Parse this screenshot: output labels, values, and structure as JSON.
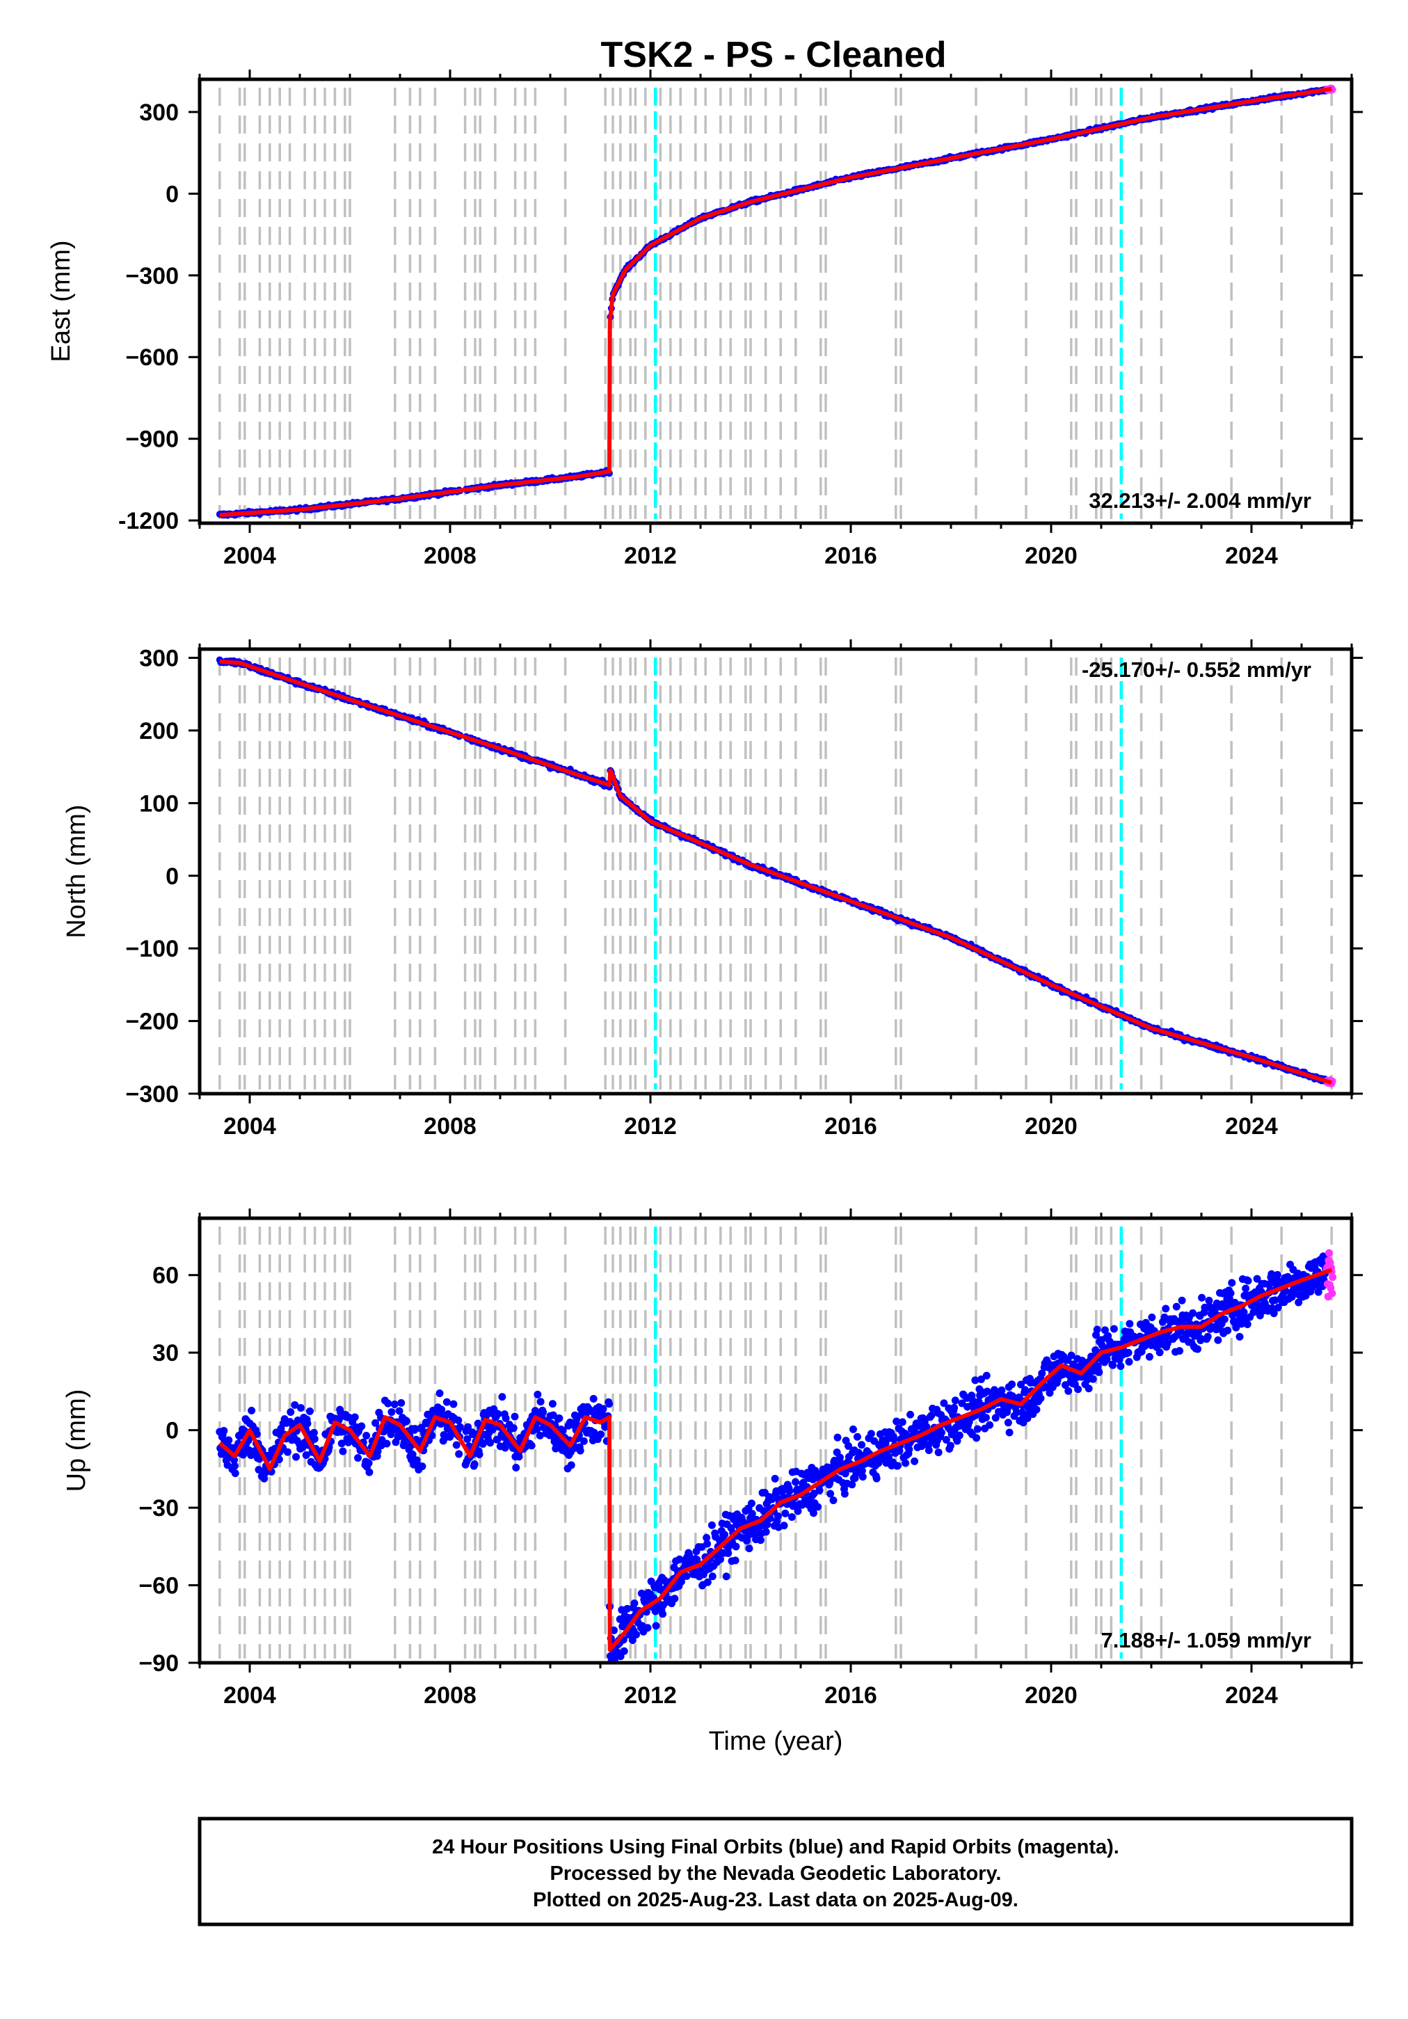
{
  "figure": {
    "title": "TSK2  - PS - Cleaned",
    "colors": {
      "final_orbits": "#0000ff",
      "rapid_orbits": "#ff33ff",
      "model": "#ff0000",
      "event_lines": "#c0c0c0",
      "highlight_lines": "#00ffff"
    },
    "footer": {
      "line1": "24 Hour Positions Using Final Orbits (blue) and Rapid Orbits (magenta).",
      "line2": "Processed by the Nevada Geodetic Laboratory.",
      "line3": "Plotted on 2025-Aug-23. Last data on 2025-Aug-09."
    }
  },
  "chart_data": [
    {
      "type": "scatter",
      "component": "east",
      "ylabel": "East (mm)",
      "xlabel": "",
      "rate_text": "32.213+/- 2.004 mm/yr",
      "rate_position": "bottom-right",
      "xlim": [
        2003.0,
        2026.0
      ],
      "ylim": [
        -1210,
        420
      ],
      "xticks": [
        2004,
        2008,
        2012,
        2016,
        2020,
        2024
      ],
      "yticks": [
        -1200,
        -900,
        -600,
        -300,
        0,
        300
      ],
      "ytick_labels": [
        "-1200",
        "−900",
        "−600",
        "−300",
        "0",
        "300"
      ],
      "series": [
        {
          "role": "model",
          "x": [
            2003.4,
            2005.0,
            2007.0,
            2009.0,
            2010.5,
            2011.18,
            2011.19,
            2011.25,
            2011.5,
            2012.0,
            2013.0,
            2014.0,
            2016.0,
            2018.0,
            2020.0,
            2022.0,
            2024.0,
            2025.6
          ],
          "y": [
            -1180,
            -1160,
            -1120,
            -1070,
            -1040,
            -1020,
            -470,
            -370,
            -280,
            -190,
            -90,
            -30,
            60,
            130,
            200,
            280,
            340,
            385
          ]
        }
      ]
    },
    {
      "type": "scatter",
      "component": "north",
      "ylabel": "North (mm)",
      "xlabel": "",
      "rate_text": "-25.170+/- 0.552 mm/yr",
      "rate_position": "top-right",
      "xlim": [
        2003.0,
        2026.0
      ],
      "ylim": [
        -300,
        312
      ],
      "xticks": [
        2004,
        2008,
        2012,
        2016,
        2020,
        2024
      ],
      "yticks": [
        -300,
        -200,
        -100,
        0,
        100,
        200,
        300
      ],
      "ytick_labels": [
        "−300",
        "−200",
        "−100",
        "0",
        "100",
        "200",
        "300"
      ],
      "series": [
        {
          "role": "model",
          "x": [
            2003.4,
            2003.8,
            2005.0,
            2007.0,
            2009.0,
            2010.5,
            2011.18,
            2011.2,
            2011.4,
            2012.0,
            2013.0,
            2014.0,
            2016.0,
            2018.0,
            2020.0,
            2022.0,
            2024.0,
            2025.6
          ],
          "y": [
            295,
            293,
            265,
            220,
            175,
            140,
            125,
            145,
            110,
            75,
            45,
            15,
            -35,
            -85,
            -150,
            -210,
            -250,
            -285
          ]
        }
      ]
    },
    {
      "type": "scatter",
      "component": "up",
      "ylabel": "Up (mm)",
      "xlabel": "Time (year)",
      "rate_text": "7.188+/- 1.059 mm/yr",
      "rate_position": "bottom-right",
      "xlim": [
        2003.0,
        2026.0
      ],
      "ylim": [
        -90,
        82
      ],
      "xticks": [
        2004,
        2008,
        2012,
        2016,
        2020,
        2024
      ],
      "yticks": [
        -90,
        -60,
        -30,
        0,
        30,
        60
      ],
      "ytick_labels": [
        "−90",
        "−60",
        "−30",
        "0",
        "30",
        "60"
      ],
      "series": [
        {
          "role": "model",
          "x": [
            2003.4,
            2003.7,
            2004.0,
            2004.4,
            2004.7,
            2005.0,
            2005.4,
            2005.7,
            2006.0,
            2006.4,
            2006.7,
            2007.0,
            2007.4,
            2007.7,
            2008.0,
            2008.4,
            2008.7,
            2009.0,
            2009.4,
            2009.7,
            2010.0,
            2010.4,
            2010.7,
            2011.0,
            2011.18,
            2011.19,
            2011.5,
            2011.8,
            2012.2,
            2012.6,
            2013.0,
            2013.4,
            2013.8,
            2014.2,
            2014.6,
            2015.0,
            2015.4,
            2015.8,
            2016.2,
            2016.6,
            2017.0,
            2017.4,
            2017.8,
            2018.2,
            2018.6,
            2019.0,
            2019.4,
            2019.8,
            2020.2,
            2020.6,
            2021.0,
            2021.4,
            2021.8,
            2022.2,
            2022.6,
            2023.0,
            2023.4,
            2023.8,
            2024.2,
            2024.6,
            2025.0,
            2025.6
          ],
          "y": [
            -5,
            -10,
            0,
            -15,
            -2,
            2,
            -12,
            3,
            0,
            -10,
            5,
            2,
            -8,
            5,
            3,
            -10,
            4,
            2,
            -8,
            5,
            2,
            -6,
            5,
            3,
            5,
            -85,
            -78,
            -70,
            -65,
            -55,
            -52,
            -45,
            -38,
            -35,
            -28,
            -25,
            -20,
            -15,
            -12,
            -8,
            -5,
            -2,
            2,
            5,
            8,
            12,
            10,
            18,
            25,
            22,
            30,
            32,
            35,
            38,
            40,
            40,
            45,
            48,
            52,
            55,
            58,
            62
          ]
        }
      ]
    }
  ]
}
